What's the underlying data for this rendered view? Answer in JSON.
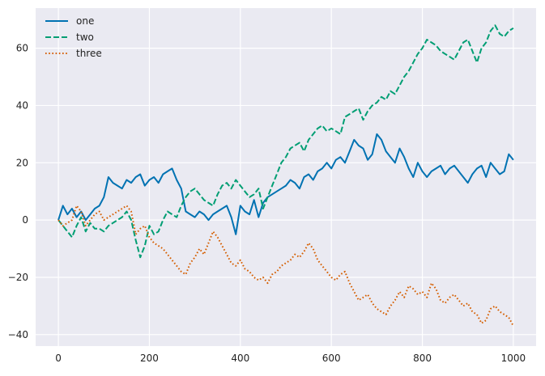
{
  "chart_data": {
    "type": "line",
    "title": "",
    "xlabel": "",
    "ylabel": "",
    "xlim": [
      -50,
      1050
    ],
    "ylim": [
      -44,
      74
    ],
    "xticks": [
      0,
      200,
      400,
      600,
      800,
      1000
    ],
    "yticks": [
      -40,
      -20,
      0,
      20,
      40,
      60
    ],
    "xtick_labels": [
      "0",
      "200",
      "400",
      "600",
      "800",
      "1000"
    ],
    "ytick_labels": [
      "−40",
      "−20",
      "0",
      "20",
      "40",
      "60"
    ],
    "grid": true,
    "legend_position": "top-left",
    "background": "#eaeaf2",
    "series": [
      {
        "name": "one",
        "color": "#0072b2",
        "style": "solid",
        "x": [
          0,
          10,
          20,
          30,
          40,
          50,
          60,
          70,
          80,
          90,
          100,
          110,
          120,
          130,
          140,
          150,
          160,
          170,
          180,
          190,
          200,
          210,
          220,
          230,
          240,
          250,
          260,
          270,
          280,
          290,
          300,
          310,
          320,
          330,
          340,
          350,
          360,
          370,
          380,
          390,
          400,
          410,
          420,
          430,
          440,
          450,
          460,
          470,
          480,
          490,
          500,
          510,
          520,
          530,
          540,
          550,
          560,
          570,
          580,
          590,
          600,
          610,
          620,
          630,
          640,
          650,
          660,
          670,
          680,
          690,
          700,
          710,
          720,
          730,
          740,
          750,
          760,
          770,
          780,
          790,
          800,
          810,
          820,
          830,
          840,
          850,
          860,
          870,
          880,
          890,
          900,
          910,
          920,
          930,
          940,
          950,
          960,
          970,
          980,
          990,
          1000
        ],
        "y": [
          0,
          5,
          2,
          4,
          1,
          3,
          0,
          2,
          4,
          5,
          8,
          15,
          13,
          12,
          11,
          14,
          13,
          15,
          16,
          12,
          14,
          15,
          13,
          16,
          17,
          18,
          14,
          11,
          3,
          2,
          1,
          3,
          2,
          0,
          2,
          3,
          4,
          5,
          1,
          -5,
          5,
          3,
          2,
          7,
          1,
          6,
          8,
          9,
          10,
          11,
          12,
          14,
          13,
          11,
          15,
          16,
          14,
          17,
          18,
          20,
          18,
          21,
          22,
          20,
          24,
          28,
          26,
          25,
          21,
          23,
          30,
          28,
          24,
          22,
          20,
          25,
          22,
          18,
          15,
          20,
          17,
          15,
          17,
          18,
          19,
          16,
          18,
          19,
          17,
          15,
          13,
          16,
          18,
          19,
          15,
          20,
          18,
          16,
          17,
          23,
          21
        ]
      },
      {
        "name": "two",
        "color": "#009e73",
        "style": "dashed",
        "x": [
          0,
          10,
          20,
          30,
          40,
          50,
          60,
          70,
          80,
          90,
          100,
          110,
          120,
          130,
          140,
          150,
          160,
          170,
          180,
          190,
          200,
          210,
          220,
          230,
          240,
          250,
          260,
          270,
          280,
          290,
          300,
          310,
          320,
          330,
          340,
          350,
          360,
          370,
          380,
          390,
          400,
          410,
          420,
          430,
          440,
          450,
          460,
          470,
          480,
          490,
          500,
          510,
          520,
          530,
          540,
          550,
          560,
          570,
          580,
          590,
          600,
          610,
          620,
          630,
          640,
          650,
          660,
          670,
          680,
          690,
          700,
          710,
          720,
          730,
          740,
          750,
          760,
          770,
          780,
          790,
          800,
          810,
          820,
          830,
          840,
          850,
          860,
          870,
          880,
          890,
          900,
          910,
          920,
          930,
          940,
          950,
          960,
          970,
          980,
          990,
          1000
        ],
        "y": [
          0,
          -2,
          -4,
          -6,
          -2,
          1,
          -4,
          -1,
          -3,
          -3,
          -4,
          -2,
          -1,
          0,
          1,
          3,
          0,
          -7,
          -13,
          -9,
          -2,
          -5,
          -4,
          0,
          3,
          2,
          1,
          5,
          8,
          10,
          11,
          9,
          7,
          6,
          5,
          9,
          12,
          13,
          11,
          14,
          12,
          10,
          8,
          9,
          11,
          4,
          8,
          12,
          16,
          20,
          22,
          25,
          26,
          27,
          24,
          28,
          30,
          32,
          33,
          31,
          32,
          31,
          30,
          36,
          37,
          38,
          39,
          35,
          38,
          40,
          41,
          43,
          42,
          45,
          44,
          47,
          50,
          52,
          55,
          58,
          60,
          63,
          62,
          61,
          59,
          58,
          57,
          56,
          59,
          62,
          63,
          59,
          55,
          60,
          62,
          66,
          68,
          65,
          64,
          66,
          67
        ]
      },
      {
        "name": "three",
        "color": "#d55e00",
        "style": "dotted",
        "x": [
          0,
          10,
          20,
          30,
          40,
          50,
          60,
          70,
          80,
          90,
          100,
          110,
          120,
          130,
          140,
          150,
          160,
          170,
          180,
          190,
          200,
          210,
          220,
          230,
          240,
          250,
          260,
          270,
          280,
          290,
          300,
          310,
          320,
          330,
          340,
          350,
          360,
          370,
          380,
          390,
          400,
          410,
          420,
          430,
          440,
          450,
          460,
          470,
          480,
          490,
          500,
          510,
          520,
          530,
          540,
          550,
          560,
          570,
          580,
          590,
          600,
          610,
          620,
          630,
          640,
          650,
          660,
          670,
          680,
          690,
          700,
          710,
          720,
          730,
          740,
          750,
          760,
          770,
          780,
          790,
          800,
          810,
          820,
          830,
          840,
          850,
          860,
          870,
          880,
          890,
          900,
          910,
          920,
          930,
          940,
          950,
          960,
          970,
          980,
          990,
          1000
        ],
        "y": [
          0,
          -2,
          -1,
          0,
          5,
          3,
          -2,
          0,
          2,
          3,
          0,
          1,
          2,
          3,
          4,
          5,
          3,
          -5,
          -3,
          -2,
          -6,
          -8,
          -9,
          -10,
          -12,
          -14,
          -16,
          -18,
          -19,
          -15,
          -13,
          -10,
          -12,
          -8,
          -4,
          -6,
          -9,
          -12,
          -15,
          -16,
          -14,
          -17,
          -18,
          -20,
          -21,
          -20,
          -22,
          -19,
          -18,
          -16,
          -15,
          -14,
          -12,
          -13,
          -11,
          -8,
          -10,
          -14,
          -16,
          -18,
          -20,
          -21,
          -19,
          -18,
          -22,
          -25,
          -28,
          -27,
          -26,
          -29,
          -31,
          -32,
          -33,
          -30,
          -28,
          -25,
          -27,
          -23,
          -24,
          -26,
          -25,
          -27,
          -22,
          -24,
          -28,
          -29,
          -27,
          -26,
          -28,
          -30,
          -29,
          -32,
          -33,
          -36,
          -35,
          -31,
          -30,
          -32,
          -33,
          -34,
          -37
        ]
      }
    ]
  }
}
